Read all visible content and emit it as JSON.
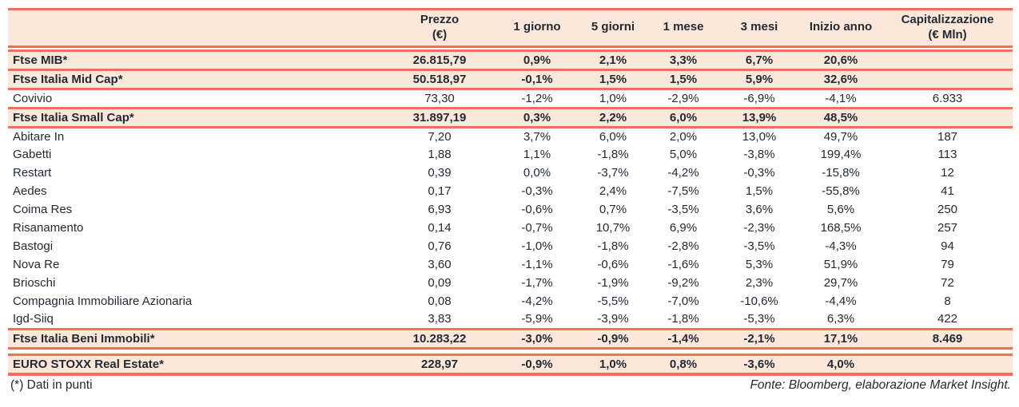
{
  "colors": {
    "accent_line": "#f2705a",
    "highlight_row_bg": "#fce8da",
    "text": "#232a33"
  },
  "table": {
    "columns": [
      {
        "key": "name",
        "label": "",
        "label2": ""
      },
      {
        "key": "prezzo",
        "label": "Prezzo",
        "label2": "(€)"
      },
      {
        "key": "g1",
        "label": "1 giorno",
        "label2": ""
      },
      {
        "key": "g5",
        "label": "5 giorni",
        "label2": ""
      },
      {
        "key": "m1",
        "label": "1 mese",
        "label2": ""
      },
      {
        "key": "m3",
        "label": "3 mesi",
        "label2": ""
      },
      {
        "key": "ytd",
        "label": "Inizio anno",
        "label2": ""
      },
      {
        "key": "cap",
        "label": "Capitalizzazione",
        "label2": "(€ Mln)"
      }
    ],
    "sections": [
      {
        "rows": [
          {
            "style": "index",
            "name": "Ftse MIB*",
            "prezzo": "26.815,79",
            "g1": "0,9%",
            "g5": "2,1%",
            "m1": "3,3%",
            "m3": "6,7%",
            "ytd": "20,6%",
            "cap": ""
          },
          {
            "style": "index",
            "name": "Ftse Italia Mid Cap*",
            "prezzo": "50.518,97",
            "g1": "-0,1%",
            "g5": "1,5%",
            "m1": "1,5%",
            "m3": "5,9%",
            "ytd": "32,6%",
            "cap": ""
          },
          {
            "style": "stock",
            "name": "Covivio",
            "prezzo": "73,30",
            "g1": "-1,2%",
            "g5": "1,0%",
            "m1": "-2,9%",
            "m3": "-6,9%",
            "ytd": "-4,1%",
            "cap": "6.933"
          },
          {
            "style": "index",
            "name": "Ftse Italia Small Cap*",
            "prezzo": "31.897,19",
            "g1": "0,3%",
            "g5": "2,2%",
            "m1": "6,0%",
            "m3": "13,9%",
            "ytd": "48,5%",
            "cap": ""
          },
          {
            "style": "stock",
            "name": "Abitare In",
            "prezzo": "7,20",
            "g1": "3,7%",
            "g5": "6,0%",
            "m1": "2,0%",
            "m3": "13,0%",
            "ytd": "49,7%",
            "cap": "187"
          },
          {
            "style": "stock",
            "name": "Gabetti",
            "prezzo": "1,88",
            "g1": "1,1%",
            "g5": "-1,8%",
            "m1": "5,0%",
            "m3": "-3,8%",
            "ytd": "199,4%",
            "cap": "113"
          },
          {
            "style": "stock",
            "name": "Restart",
            "prezzo": "0,39",
            "g1": "0,0%",
            "g5": "-3,7%",
            "m1": "-4,2%",
            "m3": "-0,3%",
            "ytd": "-15,8%",
            "cap": "12"
          },
          {
            "style": "stock",
            "name": "Aedes",
            "prezzo": "0,17",
            "g1": "-0,3%",
            "g5": "2,4%",
            "m1": "-7,5%",
            "m3": "1,5%",
            "ytd": "-55,8%",
            "cap": "41"
          },
          {
            "style": "stock",
            "name": "Coima Res",
            "prezzo": "6,93",
            "g1": "-0,6%",
            "g5": "0,7%",
            "m1": "-3,5%",
            "m3": "3,6%",
            "ytd": "5,6%",
            "cap": "250"
          },
          {
            "style": "stock",
            "name": "Risanamento",
            "prezzo": "0,14",
            "g1": "-0,7%",
            "g5": "10,7%",
            "m1": "6,9%",
            "m3": "-2,3%",
            "ytd": "168,5%",
            "cap": "257"
          },
          {
            "style": "stock",
            "name": "Bastogi",
            "prezzo": "0,76",
            "g1": "-1,0%",
            "g5": "-1,8%",
            "m1": "-2,8%",
            "m3": "-3,5%",
            "ytd": "-4,3%",
            "cap": "94"
          },
          {
            "style": "stock",
            "name": "Nova Re",
            "prezzo": "3,60",
            "g1": "-1,1%",
            "g5": "-0,6%",
            "m1": "-1,6%",
            "m3": "5,3%",
            "ytd": "51,9%",
            "cap": "79"
          },
          {
            "style": "stock",
            "name": "Brioschi",
            "prezzo": "0,09",
            "g1": "-1,7%",
            "g5": "-1,9%",
            "m1": "-9,2%",
            "m3": "2,3%",
            "ytd": "29,7%",
            "cap": "72"
          },
          {
            "style": "stock",
            "name": "Compagnia Immobiliare Azionaria",
            "prezzo": "0,08",
            "g1": "-4,2%",
            "g5": "-5,5%",
            "m1": "-7,0%",
            "m3": "-10,6%",
            "ytd": "-4,4%",
            "cap": "8"
          },
          {
            "style": "stock",
            "name": "Igd-Siiq",
            "prezzo": "3,83",
            "g1": "-5,9%",
            "g5": "-3,9%",
            "m1": "-1,8%",
            "m3": "-5,3%",
            "ytd": "6,3%",
            "cap": "422"
          },
          {
            "style": "index",
            "name": "Ftse Italia Beni Immobili*",
            "prezzo": "10.283,22",
            "g1": "-3,0%",
            "g5": "-0,9%",
            "m1": "-1,4%",
            "m3": "-2,1%",
            "ytd": "17,1%",
            "cap": "8.469"
          }
        ]
      },
      {
        "rows": [
          {
            "style": "index",
            "name": "EURO STOXX Real Estate*",
            "prezzo": "228,97",
            "g1": "-0,9%",
            "g5": "1,0%",
            "m1": "0,8%",
            "m3": "-3,6%",
            "ytd": "4,0%",
            "cap": ""
          }
        ]
      }
    ]
  },
  "footer": {
    "left": "(*) Dati in punti",
    "right": "Fonte: Bloomberg, elaborazione Market Insight."
  }
}
